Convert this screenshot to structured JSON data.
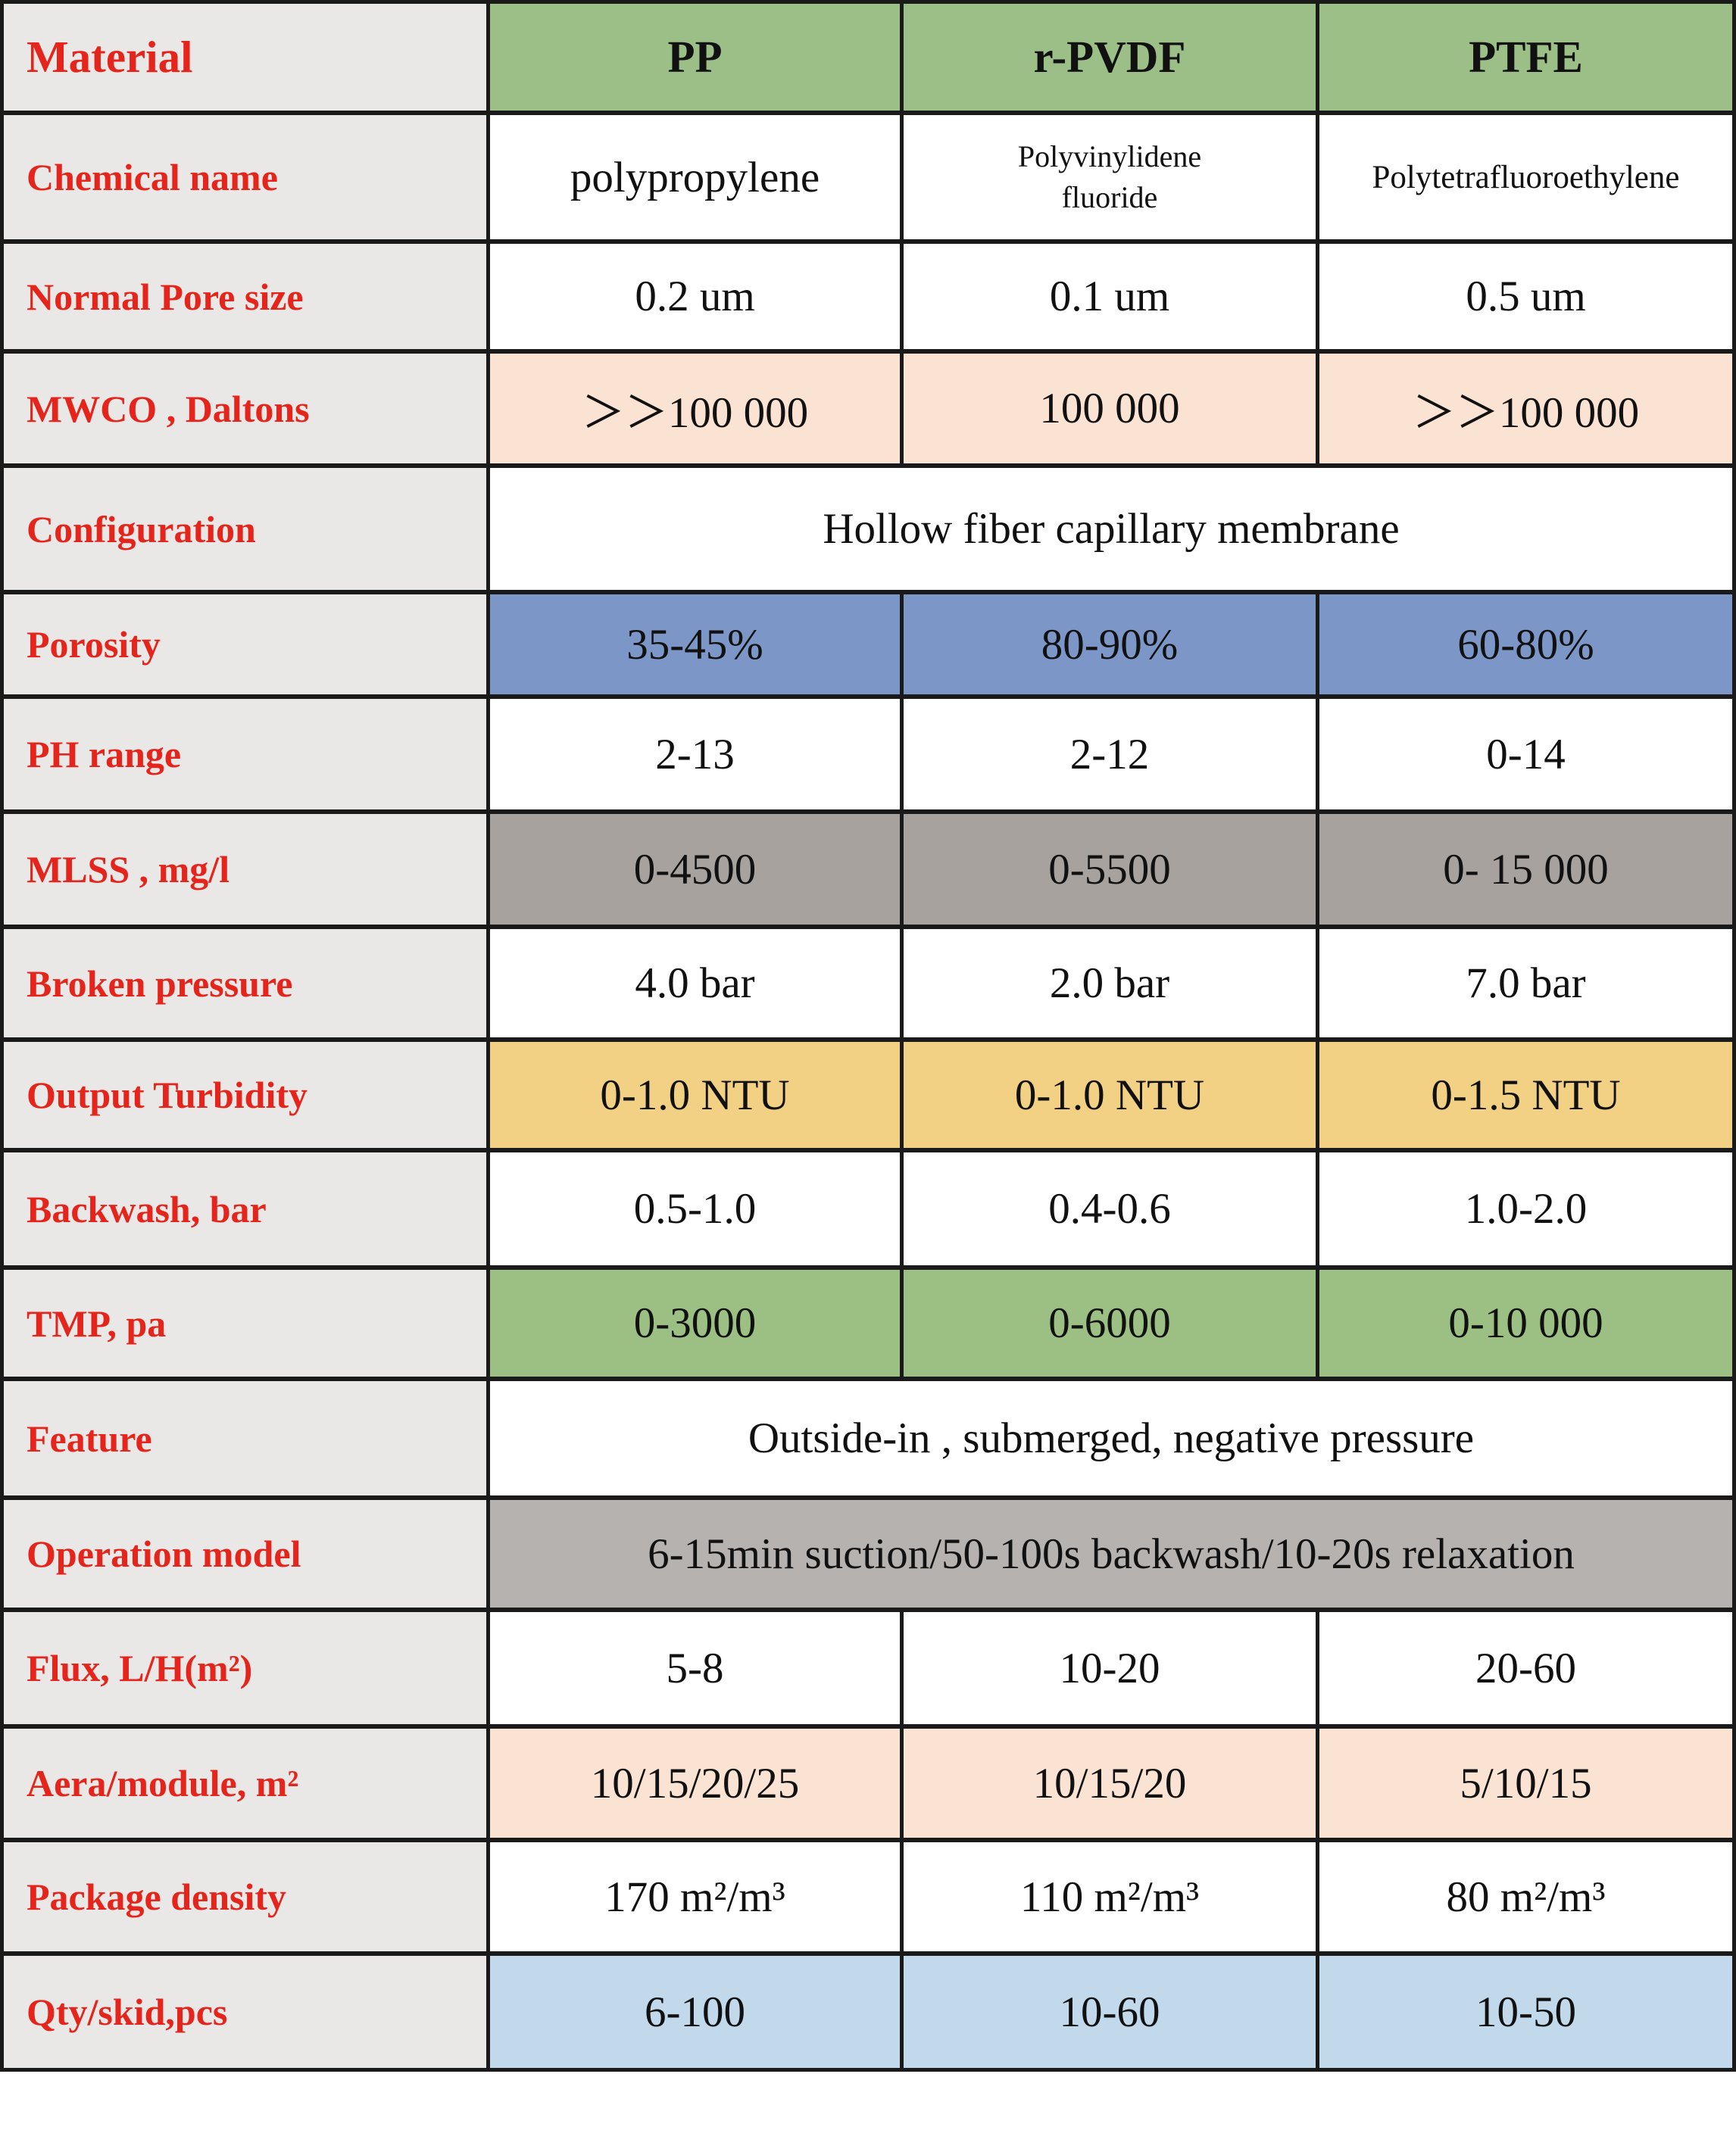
{
  "chart_data": {
    "type": "table",
    "title": "Membrane material comparison table",
    "colors": {
      "border": "#1a1a1a",
      "label_bg": "#e9e8e6",
      "label_red": "#e5251b",
      "header_green": "#9cbf87",
      "peach": "#fbe3d3",
      "blue": "#7c97c7",
      "dark_gray": "#a7a29d",
      "yellow": "#f2d184",
      "green": "#9cc084",
      "op_gray": "#b5b2af",
      "light_blue": "#c2d9eb",
      "white": "#ffffff"
    },
    "header": {
      "label": "Material",
      "bg": "#9cbf87",
      "cols": [
        "PP",
        "r-PVDF",
        "PTFE"
      ]
    },
    "rows": [
      {
        "label": "Chemical name",
        "bg": "#ffffff",
        "values": [
          "polypropylene",
          "Polyvinylidene\nfluoride",
          "Polytetrafluoroethylene"
        ]
      },
      {
        "label": "Normal Pore size",
        "bg": "#ffffff",
        "values": [
          "0.2 um",
          "0.1 um",
          "0.5 um"
        ]
      },
      {
        "label": "MWCO , Daltons",
        "bg": "#fbe3d3",
        "values": [
          "＞＞100 000",
          "100 000",
          "＞＞100 000"
        ]
      },
      {
        "label": "Configuration",
        "bg": "#ffffff",
        "merged": "Hollow fiber capillary membrane"
      },
      {
        "label": "Porosity",
        "bg": "#7c97c7",
        "values": [
          "35-45%",
          "80-90%",
          "60-80%"
        ]
      },
      {
        "label": "PH range",
        "bg": "#ffffff",
        "values": [
          "2-13",
          "2-12",
          "0-14"
        ]
      },
      {
        "label": "MLSS , mg/l",
        "bg": "#a7a29d",
        "values": [
          "0-4500",
          "0-5500",
          "0- 15 000"
        ]
      },
      {
        "label": "Broken pressure",
        "bg": "#ffffff",
        "values": [
          "4.0 bar",
          "2.0 bar",
          "7.0 bar"
        ]
      },
      {
        "label": "Output Turbidity",
        "bg": "#f2d184",
        "values": [
          "0-1.0 NTU",
          "0-1.0 NTU",
          "0-1.5 NTU"
        ]
      },
      {
        "label": "Backwash, bar",
        "bg": "#ffffff",
        "values": [
          "0.5-1.0",
          "0.4-0.6",
          "1.0-2.0"
        ]
      },
      {
        "label": "TMP, pa",
        "bg": "#9cc084",
        "values": [
          "0-3000",
          "0-6000",
          "0-10 000"
        ]
      },
      {
        "label": "Feature",
        "bg": "#ffffff",
        "merged": "Outside-in , submerged, negative pressure"
      },
      {
        "label": "Operation model",
        "bg": "#b5b2af",
        "merged": "6-15min suction/50-100s backwash/10-20s relaxation"
      },
      {
        "label": "Flux, L/H(m²)",
        "bg": "#ffffff",
        "values": [
          "5-8",
          "10-20",
          "20-60"
        ]
      },
      {
        "label": "Aera/module, m²",
        "bg": "#fbe3d3",
        "values": [
          "10/15/20/25",
          "10/15/20",
          "5/10/15"
        ]
      },
      {
        "label": "Package density",
        "bg": "#ffffff",
        "values": [
          "170 m²/m³",
          "110 m²/m³",
          "80 m²/m³"
        ]
      },
      {
        "label": "Qty/skid,pcs",
        "bg": "#c2d9eb",
        "values": [
          "6-100",
          "10-60",
          "10-50"
        ]
      }
    ]
  }
}
